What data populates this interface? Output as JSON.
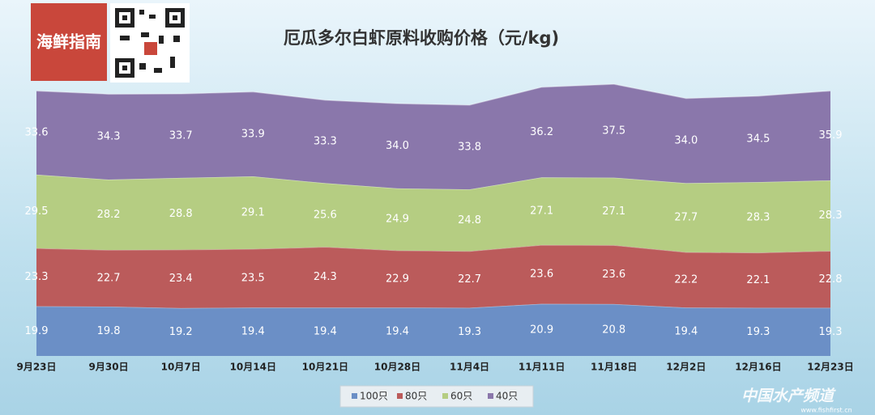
{
  "logo": "海鲜指南",
  "watermark": {
    "brand": "中国水产频道",
    "site": "www.fishfirst.cn"
  },
  "chart_data": {
    "type": "stacked-area",
    "title": "厄瓜多尔白虾原料收购价格（元/kg)",
    "categories": [
      "9月23日",
      "9月30日",
      "10月7日",
      "10月14日",
      "10月21日",
      "10月28日",
      "11月4日",
      "11月11日",
      "11月18日",
      "12月2日",
      "12月16日",
      "12月23日"
    ],
    "series": [
      {
        "name": "100只",
        "color": "#6b8fc6",
        "values": [
          19.9,
          19.8,
          19.2,
          19.4,
          19.4,
          19.4,
          19.3,
          20.9,
          20.8,
          19.4,
          19.3,
          19.3
        ],
        "value_labels": [
          "19.9",
          "19.8",
          "19.2",
          "19.4",
          "19.4",
          "19.4",
          "19.3",
          "20.9",
          "20.8",
          "19.4",
          "19.3",
          "19.3"
        ]
      },
      {
        "name": "80只",
        "color": "#bb5b5b",
        "values": [
          23.3,
          22.7,
          23.4,
          23.5,
          24.3,
          22.9,
          22.7,
          23.6,
          23.6,
          22.2,
          22.1,
          22.8
        ],
        "value_labels": [
          "23.3",
          "22.7",
          "23.4",
          "23.5",
          "24.3",
          "22.9",
          "22.7",
          "23.6",
          "23.6",
          "22.2",
          "22.1",
          "22.8"
        ]
      },
      {
        "name": "60只",
        "color": "#b5cd82",
        "values": [
          29.5,
          28.2,
          28.8,
          29.1,
          25.6,
          24.9,
          24.8,
          27.1,
          27.1,
          27.7,
          28.3,
          28.3
        ],
        "value_labels": [
          "29.5",
          "28.2",
          "28.8",
          "29.1",
          "25.6",
          "24.9",
          "24.8",
          "27.1",
          "27.1",
          "27.7",
          "28.3",
          "28.3"
        ]
      },
      {
        "name": "40只",
        "color": "#8a77ab",
        "values": [
          33.6,
          34.3,
          33.7,
          33.9,
          33.3,
          34.0,
          33.8,
          36.2,
          37.5,
          34.0,
          34.5,
          35.9
        ],
        "value_labels": [
          "33.6",
          "34.3",
          "33.7",
          "33.9",
          "33.3",
          "34.0",
          "33.8",
          "36.2",
          "37.5",
          "34.0",
          "34.5",
          "35.9"
        ]
      }
    ],
    "legend": "bottom"
  }
}
